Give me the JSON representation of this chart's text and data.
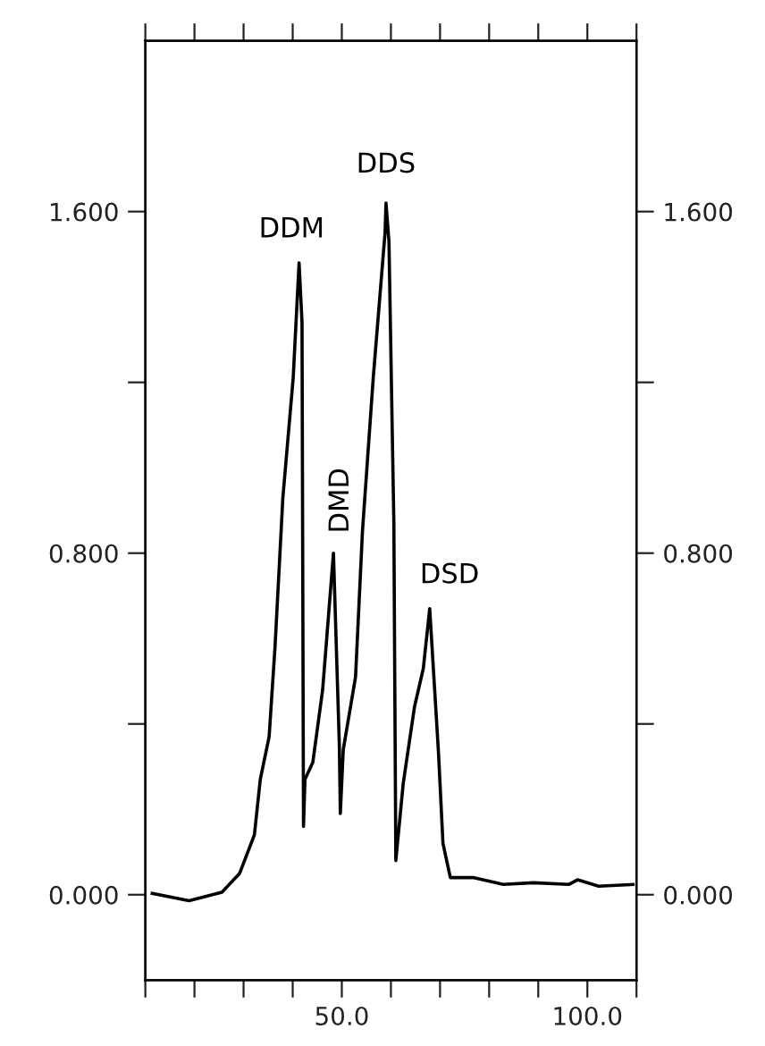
{
  "chart_data": {
    "type": "line",
    "x": [
      11.4,
      18.9,
      25.6,
      29.2,
      32.2,
      33.4,
      35.2,
      36.4,
      38.0,
      40.1,
      41.3,
      41.9,
      42.2,
      42.5,
      44.1,
      46.1,
      48.3,
      49.5,
      49.7,
      50.3,
      52.8,
      54.2,
      56.4,
      58.8,
      59.0,
      59.6,
      60.6,
      61.0,
      62.5,
      64.8,
      66.6,
      67.9,
      69.7,
      70.6,
      72.1,
      76.9,
      82.9,
      89.0,
      96.2,
      98.0,
      102.3,
      109.3
    ],
    "series": [
      {
        "color": "#000000",
        "values": [
          0.003,
          -0.014,
          0.006,
          0.05,
          0.14,
          0.27,
          0.37,
          0.58,
          0.93,
          1.21,
          1.48,
          1.34,
          0.16,
          0.27,
          0.31,
          0.48,
          0.8,
          0.35,
          0.19,
          0.34,
          0.51,
          0.85,
          1.21,
          1.55,
          1.62,
          1.53,
          0.87,
          0.08,
          0.26,
          0.44,
          0.53,
          0.67,
          0.33,
          0.12,
          0.04,
          0.04,
          0.024,
          0.028,
          0.024,
          0.035,
          0.02,
          0.024
        ]
      }
    ],
    "xlim": [
      10,
      110
    ],
    "xticks": [
      {
        "value": 10,
        "label": null
      },
      {
        "value": 20,
        "label": null
      },
      {
        "value": 30,
        "label": null
      },
      {
        "value": 40,
        "label": null
      },
      {
        "value": 50,
        "label": "50.0"
      },
      {
        "value": 60,
        "label": null
      },
      {
        "value": 70,
        "label": null
      },
      {
        "value": 80,
        "label": null
      },
      {
        "value": 90,
        "label": null
      },
      {
        "value": 100,
        "label": "100.0"
      },
      {
        "value": 110,
        "label": null
      }
    ],
    "ylim": [
      -0.2,
      2.0
    ],
    "yticks": [
      {
        "value": 0,
        "label": "0.000"
      },
      {
        "value": 0.4,
        "label": null
      },
      {
        "value": 0.8,
        "label": "0.800"
      },
      {
        "value": 1.2,
        "label": null
      },
      {
        "value": 1.6,
        "label": "1.600"
      }
    ],
    "y2lim": [
      -0.2,
      2.0
    ],
    "y2ticks": [
      {
        "value": 0,
        "label": "0.000"
      },
      {
        "value": 0.4,
        "label": null
      },
      {
        "value": 0.8,
        "label": "0.800"
      },
      {
        "value": 1.2,
        "label": null
      },
      {
        "value": 1.6,
        "label": "1.600"
      }
    ],
    "annotations": [
      {
        "text": "DDM",
        "x": 41.3,
        "y": 1.48
      },
      {
        "text": "DDS",
        "x": 59.0,
        "y": 1.62
      },
      {
        "text": "DMD",
        "x": 48.3,
        "y": 0.8
      },
      {
        "text": "DSD",
        "x": 67.9,
        "y": 0.67
      }
    ],
    "grid": false,
    "legend": false,
    "marker": "none",
    "line_style": "solid"
  }
}
